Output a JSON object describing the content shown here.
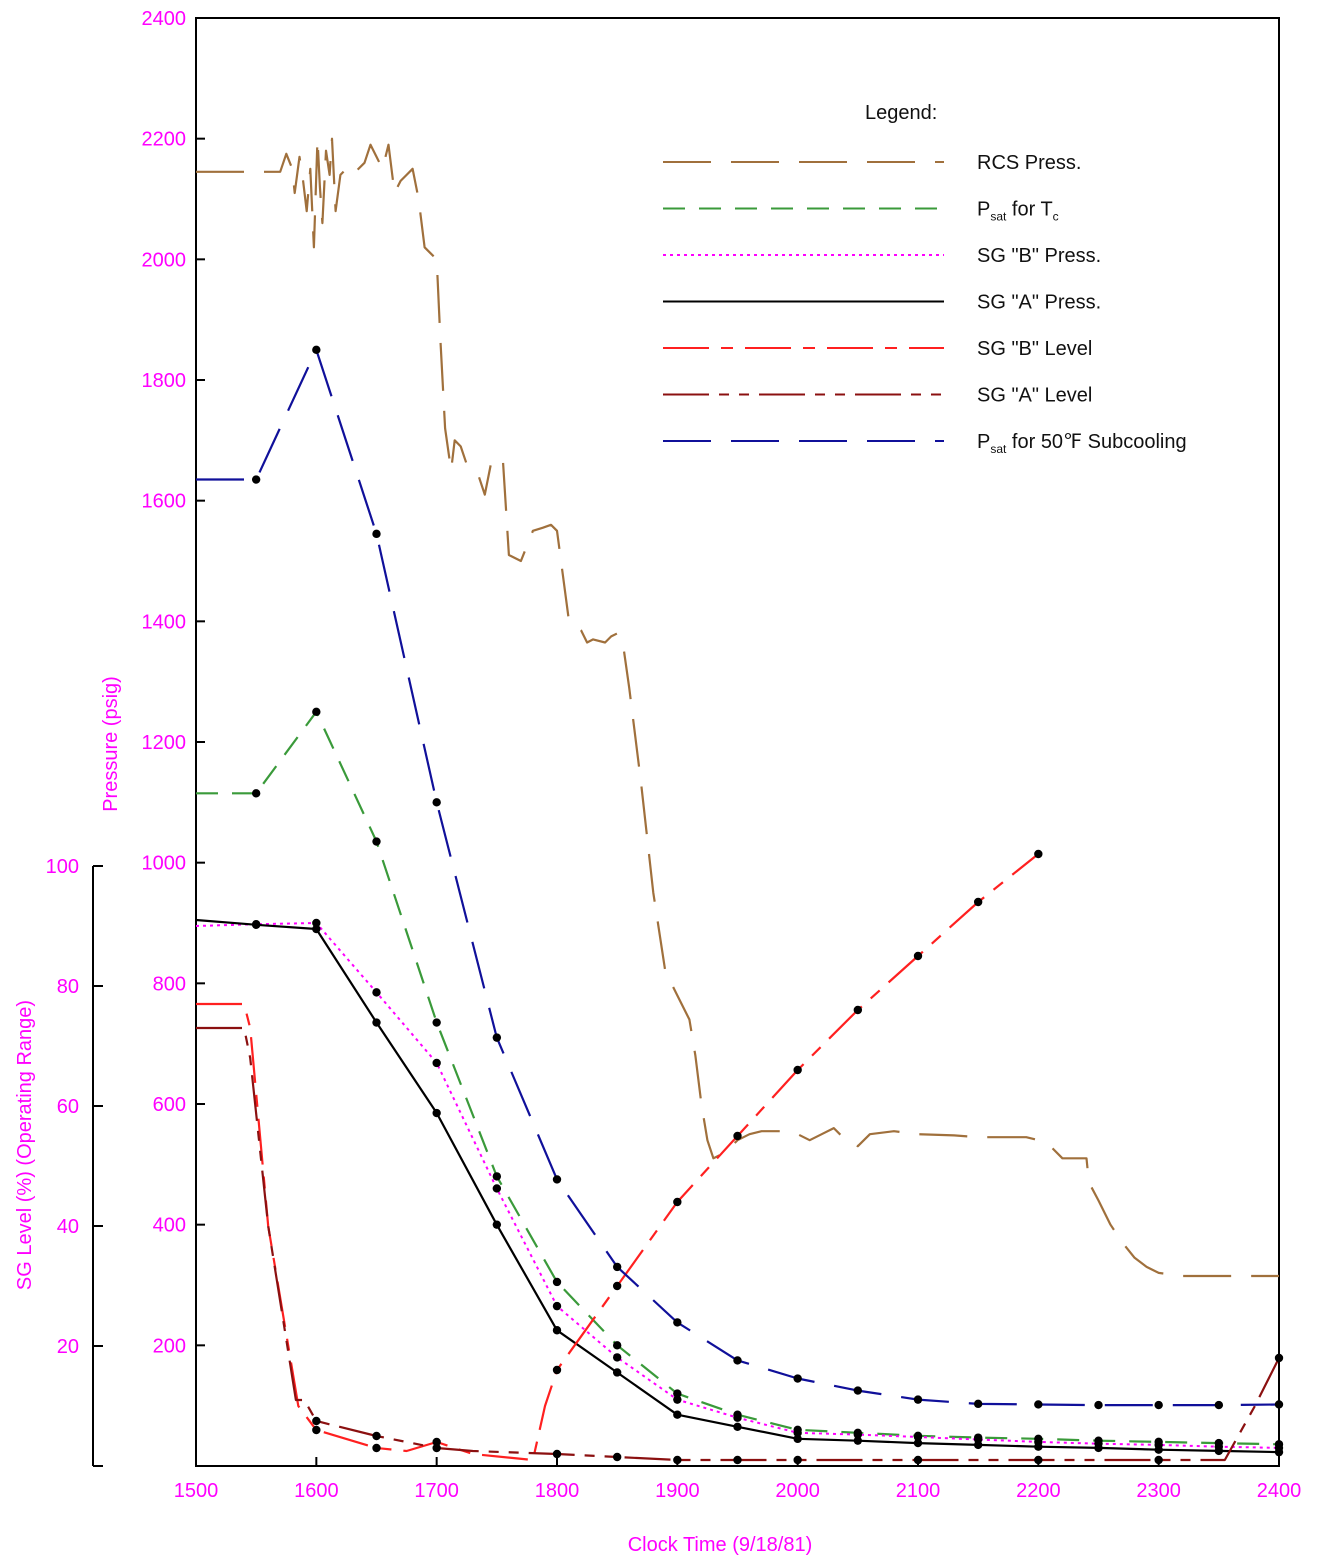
{
  "chart_data": {
    "type": "line",
    "title": "",
    "xlabel": "Clock Time (9/18/81)",
    "ylabel_left_pressure": "Pressure (psig)",
    "ylabel_left_level": "SG Level (%) (Operating Range)",
    "xlim": [
      1500,
      2400
    ],
    "xticks": [
      "1500",
      "1600",
      "1700",
      "1800",
      "1900",
      "2000",
      "2100",
      "2200",
      "2300",
      "2400"
    ],
    "pressure_axis": {
      "ylim": [
        0,
        2400
      ],
      "ticks": [
        "200",
        "400",
        "600",
        "800",
        "1000",
        "1200",
        "1400",
        "1600",
        "1800",
        "2000",
        "2200",
        "2400"
      ]
    },
    "level_axis": {
      "ylim": [
        0,
        100
      ],
      "ticks": [
        "20",
        "40",
        "60",
        "80",
        "100"
      ]
    },
    "legend": {
      "title": "Legend:",
      "placement": "top-right"
    },
    "series": [
      {
        "name": "RCS Press.",
        "legend_main": "RCS Press.",
        "legend_sub": "",
        "legend_tail": "",
        "axis": "pressure",
        "color": "#a0703c",
        "style": "longdash",
        "markers": false,
        "x": [
          1500,
          1555,
          1570,
          1575,
          1580,
          1582,
          1586,
          1589,
          1592,
          1595,
          1598,
          1601,
          1603,
          1605,
          1608,
          1611,
          1613,
          1616,
          1620,
          1625,
          1630,
          1640,
          1645,
          1650,
          1655,
          1660,
          1665,
          1670,
          1675,
          1680,
          1685,
          1690,
          1695,
          1700,
          1703,
          1707,
          1712,
          1715,
          1720,
          1725,
          1730,
          1735,
          1740,
          1745,
          1750,
          1755,
          1760,
          1770,
          1780,
          1788,
          1795,
          1800,
          1810,
          1815,
          1820,
          1825,
          1830,
          1840,
          1845,
          1850,
          1855,
          1860,
          1870,
          1880,
          1890,
          1900,
          1910,
          1915,
          1920,
          1925,
          1930,
          1940,
          1950,
          1960,
          1970,
          1980,
          1990,
          2000,
          2010,
          2020,
          2030,
          2040,
          2050,
          2060,
          2080,
          2100,
          2130,
          2150,
          2170,
          2190,
          2200,
          2210,
          2220,
          2235,
          2240,
          2242,
          2250,
          2260,
          2270,
          2280,
          2290,
          2300,
          2320,
          2350,
          2380,
          2400
        ],
        "y": [
          2145,
          2145,
          2145,
          2175,
          2150,
          2110,
          2170,
          2130,
          2080,
          2150,
          2020,
          2200,
          2120,
          2060,
          2180,
          2140,
          2200,
          2080,
          2140,
          2150,
          2140,
          2160,
          2190,
          2170,
          2150,
          2190,
          2110,
          2130,
          2140,
          2150,
          2100,
          2020,
          2010,
          2000,
          1870,
          1720,
          1650,
          1700,
          1690,
          1660,
          1650,
          1640,
          1610,
          1660,
          1660,
          1670,
          1510,
          1500,
          1550,
          1555,
          1560,
          1550,
          1400,
          1395,
          1385,
          1365,
          1370,
          1365,
          1375,
          1380,
          1360,
          1290,
          1130,
          950,
          820,
          780,
          740,
          680,
          600,
          540,
          510,
          520,
          540,
          550,
          555,
          555,
          555,
          550,
          540,
          550,
          560,
          540,
          530,
          550,
          555,
          550,
          548,
          545,
          545,
          545,
          540,
          530,
          510,
          510,
          510,
          470,
          440,
          400,
          370,
          345,
          330,
          320,
          315,
          315,
          315,
          315
        ]
      },
      {
        "name": "Psat for Tc",
        "legend_main": "P",
        "legend_sub": "sat",
        "legend_tail": " for T",
        "legend_sub2": "c",
        "axis": "pressure",
        "color": "#3a9a3a",
        "style": "dash",
        "markers": true,
        "x": [
          1500,
          1550,
          1600,
          1650,
          1700,
          1750,
          1800,
          1850,
          1900,
          1950,
          2000,
          2050,
          2100,
          2150,
          2200,
          2250,
          2300,
          2350,
          2400
        ],
        "y": [
          1115,
          1115,
          1250,
          1035,
          735,
          480,
          305,
          200,
          120,
          85,
          60,
          55,
          50,
          47,
          45,
          42,
          40,
          38,
          36
        ]
      },
      {
        "name": "SG \"B\" Press.",
        "legend_main": "SG \"B\" Press.",
        "legend_sub": "",
        "legend_tail": "",
        "axis": "pressure",
        "color": "#ff00ff",
        "style": "dot",
        "markers": true,
        "x": [
          1500,
          1550,
          1600,
          1650,
          1700,
          1750,
          1800,
          1850,
          1900,
          1950,
          2000,
          2050,
          2100,
          2150,
          2200,
          2250,
          2300,
          2350,
          2400
        ],
        "y": [
          895,
          898,
          900,
          785,
          668,
          460,
          265,
          180,
          110,
          80,
          55,
          52,
          48,
          44,
          40,
          37,
          35,
          32,
          30
        ]
      },
      {
        "name": "SG \"A\" Press.",
        "legend_main": "SG \"A\" Press.",
        "legend_sub": "",
        "legend_tail": "",
        "axis": "pressure",
        "color": "#000000",
        "style": "solid",
        "markers": true,
        "x": [
          1500,
          1550,
          1600,
          1650,
          1700,
          1750,
          1800,
          1850,
          1900,
          1950,
          2000,
          2050,
          2100,
          2150,
          2200,
          2250,
          2300,
          2350,
          2400
        ],
        "y": [
          905,
          897,
          890,
          735,
          585,
          400,
          225,
          155,
          85,
          65,
          45,
          42,
          38,
          35,
          32,
          30,
          27,
          25,
          23
        ]
      },
      {
        "name": "SG \"B\" Level",
        "legend_main": "SG \"B\" Level",
        "legend_sub": "",
        "legend_tail": "",
        "axis": "level",
        "color": "#ff2020",
        "style": "dashdot",
        "markers": true,
        "x": [
          1500,
          1540,
          1545,
          1560,
          1585,
          1600,
          1650,
          1675,
          1700,
          1730,
          1780,
          1790,
          1800,
          1850,
          1900,
          1950,
          2000,
          2050,
          2100,
          2150,
          2200
        ],
        "y": [
          77,
          77,
          73,
          40,
          10,
          6,
          3,
          2.5,
          4,
          2,
          1,
          10,
          16,
          30,
          44,
          55,
          66,
          76,
          85,
          94,
          102
        ]
      },
      {
        "name": "SG \"A\" Level",
        "legend_main": "SG \"A\" Level",
        "legend_sub": "",
        "legend_tail": "",
        "axis": "level",
        "color": "#8b1010",
        "style": "dashdotdot",
        "markers": true,
        "x": [
          1500,
          1540,
          1545,
          1560,
          1583,
          1590,
          1600,
          1650,
          1700,
          1730,
          1800,
          1850,
          1900,
          1950,
          2000,
          2100,
          2200,
          2300,
          2355,
          2380,
          2400
        ],
        "y": [
          73,
          73,
          68,
          40,
          11,
          11,
          7.5,
          5,
          3,
          2.5,
          2,
          1.5,
          1,
          1,
          1,
          1,
          1,
          1,
          1,
          10,
          18
        ]
      },
      {
        "name": "Psat for 50°F Subcooling",
        "legend_main": "P",
        "legend_sub": "sat",
        "legend_tail": " for 50℉ Subcooling",
        "axis": "pressure",
        "color": "#10109a",
        "style": "longdash",
        "markers": true,
        "x": [
          1500,
          1550,
          1600,
          1650,
          1700,
          1750,
          1800,
          1850,
          1900,
          1950,
          2000,
          2050,
          2100,
          2150,
          2200,
          2250,
          2300,
          2350,
          2400
        ],
        "y": [
          1635,
          1635,
          1850,
          1545,
          1100,
          710,
          475,
          330,
          238,
          175,
          145,
          125,
          110,
          103,
          102,
          101,
          101,
          101,
          102
        ]
      }
    ]
  }
}
